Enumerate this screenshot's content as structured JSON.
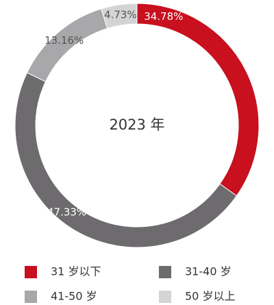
{
  "chart_data": {
    "type": "donut",
    "center_label": "2023 年",
    "categories": [
      "31 岁以下",
      "31-40 岁",
      "41-50 岁",
      "50 岁以上"
    ],
    "values": [
      34.78,
      47.33,
      13.16,
      4.73
    ],
    "value_labels": [
      "34.78%",
      "47.33%",
      "13.16%",
      "4.73%"
    ],
    "colors": [
      "#c8101e",
      "#6d6b6e",
      "#a8a7a9",
      "#d4d4d4"
    ]
  }
}
